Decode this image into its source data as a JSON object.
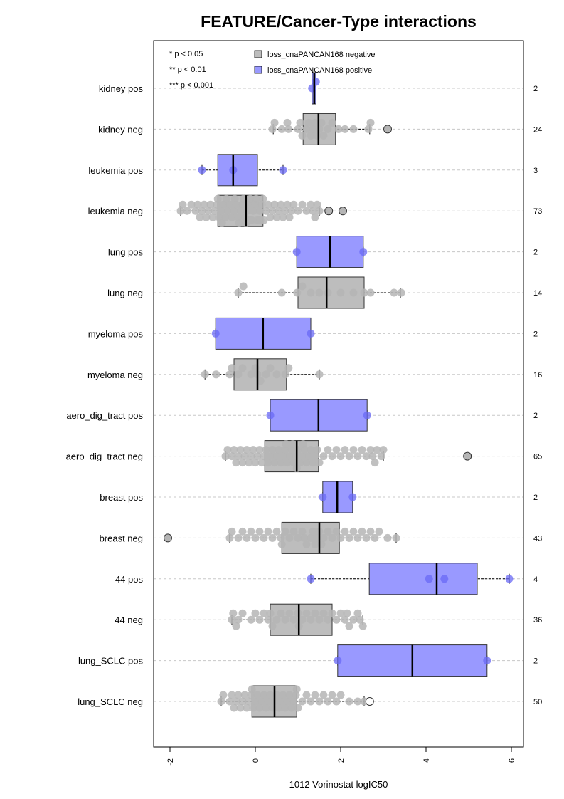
{
  "chart_data": {
    "type": "boxplot",
    "title": "FEATURE/Cancer-Type interactions",
    "xlabel": "1012 Vorinostat logIC50",
    "xlim": [
      -2.3,
      6.3
    ],
    "xticks": [
      "-2",
      "0",
      "2",
      "4",
      "6"
    ],
    "grid": "horizontal dashed",
    "significance_legend": [
      "* p < 0.05",
      "** p < 0.01",
      "*** p < 0.001"
    ],
    "legend": {
      "position": "top",
      "entries": [
        {
          "label": "loss_cnaPANCAN168 negative",
          "color": "#bdbdbd"
        },
        {
          "label": "loss_cnaPANCAN168 positive",
          "color": "#9999ff"
        }
      ]
    },
    "colors": {
      "negative_box": "#bdbdbd",
      "positive_box": "#9999ff",
      "negative_point": "#b5b5b5",
      "positive_point": "#6a6af5"
    },
    "groups": [
      {
        "label": "kidney pos",
        "n": "2",
        "status": "positive",
        "box": {
          "q1": 1.33,
          "median": 1.38,
          "q3": 1.42,
          "whisker_low": 1.33,
          "whisker_high": 1.42
        },
        "points": [
          1.33,
          1.42
        ]
      },
      {
        "label": "kidney neg",
        "n": "24",
        "status": "negative",
        "box": {
          "q1": 1.12,
          "median": 1.48,
          "q3": 1.88,
          "whisker_low": 0.42,
          "whisker_high": 2.68
        },
        "points": [
          0.4,
          0.45,
          0.62,
          0.75,
          0.78,
          1.0,
          1.05,
          1.1,
          1.2,
          1.25,
          1.3,
          1.35,
          1.4,
          1.45,
          1.5,
          1.55,
          1.6,
          1.7,
          1.8,
          1.95,
          2.1,
          2.3,
          2.65,
          2.7
        ],
        "outliers": [
          3.1
        ]
      },
      {
        "label": "leukemia pos",
        "n": "3",
        "status": "positive",
        "box": {
          "q1": -0.88,
          "median": -0.52,
          "q3": 0.05,
          "whisker_low": -1.25,
          "whisker_high": 0.65
        },
        "points": [
          -1.25,
          -0.52,
          0.65
        ]
      },
      {
        "label": "leukemia neg",
        "n": "73",
        "status": "negative",
        "box": {
          "q1": -0.88,
          "median": -0.22,
          "q3": 0.18,
          "whisker_low": -1.75,
          "whisker_high": 1.5
        },
        "points": [
          -1.75,
          -1.7,
          -1.6,
          -1.5,
          -1.4,
          -1.35,
          -1.3,
          -1.25,
          -1.2,
          -1.15,
          -1.1,
          -1.05,
          -1.0,
          -0.95,
          -0.9,
          -0.88,
          -0.85,
          -0.8,
          -0.78,
          -0.75,
          -0.7,
          -0.68,
          -0.65,
          -0.6,
          -0.55,
          -0.5,
          -0.48,
          -0.45,
          -0.4,
          -0.38,
          -0.35,
          -0.3,
          -0.28,
          -0.25,
          -0.22,
          -0.2,
          -0.18,
          -0.15,
          -0.12,
          -0.1,
          -0.08,
          -0.05,
          0.0,
          0.02,
          0.05,
          0.08,
          0.1,
          0.12,
          0.15,
          0.18,
          0.2,
          0.25,
          0.3,
          0.35,
          0.4,
          0.45,
          0.5,
          0.55,
          0.6,
          0.65,
          0.7,
          0.75,
          0.8,
          0.85,
          0.9,
          1.0,
          1.1,
          1.2,
          1.3,
          1.35,
          1.4,
          1.45,
          1.5
        ],
        "outliers": [
          1.72,
          2.05
        ]
      },
      {
        "label": "lung pos",
        "n": "2",
        "status": "positive",
        "box": {
          "q1": 0.97,
          "median": 1.75,
          "q3": 2.53,
          "whisker_low": 0.97,
          "whisker_high": 2.53
        },
        "points": [
          0.97,
          2.53
        ]
      },
      {
        "label": "lung neg",
        "n": "14",
        "status": "negative",
        "box": {
          "q1": 1.0,
          "median": 1.67,
          "q3": 2.55,
          "whisker_low": -0.4,
          "whisker_high": 3.4
        },
        "points": [
          -0.4,
          -0.28,
          0.62,
          0.98,
          1.1,
          1.3,
          1.5,
          1.7,
          2.0,
          2.3,
          2.55,
          2.7,
          3.25,
          3.42
        ]
      },
      {
        "label": "myeloma pos",
        "n": "2",
        "status": "positive",
        "box": {
          "q1": -0.93,
          "median": 0.18,
          "q3": 1.3,
          "whisker_low": -0.93,
          "whisker_high": 1.3
        },
        "points": [
          -0.93,
          1.3
        ]
      },
      {
        "label": "myeloma neg",
        "n": "16",
        "status": "negative",
        "box": {
          "q1": -0.5,
          "median": 0.05,
          "q3": 0.73,
          "whisker_low": -1.18,
          "whisker_high": 1.5
        },
        "points": [
          -1.18,
          -0.92,
          -0.6,
          -0.55,
          -0.4,
          -0.3,
          -0.1,
          0.0,
          0.05,
          0.12,
          0.25,
          0.35,
          0.5,
          0.7,
          0.78,
          1.5
        ]
      },
      {
        "label": "aero_dig_tract pos",
        "n": "2",
        "status": "positive",
        "box": {
          "q1": 0.35,
          "median": 1.48,
          "q3": 2.62,
          "whisker_low": 0.35,
          "whisker_high": 2.62
        },
        "points": [
          0.35,
          2.62
        ]
      },
      {
        "label": "aero_dig_tract neg",
        "n": "65",
        "status": "negative",
        "box": {
          "q1": 0.22,
          "median": 0.97,
          "q3": 1.48,
          "whisker_low": -0.7,
          "whisker_high": 3.0
        },
        "points": [
          -0.7,
          -0.65,
          -0.55,
          -0.5,
          -0.45,
          -0.4,
          -0.35,
          -0.3,
          -0.25,
          -0.2,
          -0.15,
          -0.1,
          -0.05,
          0.0,
          0.05,
          0.1,
          0.15,
          0.2,
          0.25,
          0.3,
          0.35,
          0.4,
          0.45,
          0.5,
          0.55,
          0.6,
          0.65,
          0.7,
          0.72,
          0.75,
          0.8,
          0.85,
          0.88,
          0.9,
          0.95,
          0.97,
          1.0,
          1.05,
          1.1,
          1.12,
          1.15,
          1.2,
          1.25,
          1.3,
          1.35,
          1.4,
          1.45,
          1.5,
          1.6,
          1.7,
          1.8,
          1.9,
          2.0,
          2.1,
          2.2,
          2.3,
          2.4,
          2.5,
          2.6,
          2.7,
          2.75,
          2.8,
          2.85,
          2.95,
          3.0
        ],
        "outliers": [
          4.97
        ]
      },
      {
        "label": "breast pos",
        "n": "2",
        "status": "positive",
        "box": {
          "q1": 1.58,
          "median": 1.92,
          "q3": 2.28,
          "whisker_low": 1.58,
          "whisker_high": 2.28
        },
        "points": [
          1.58,
          2.28
        ]
      },
      {
        "label": "breast neg",
        "n": "43",
        "status": "negative",
        "box": {
          "q1": 0.62,
          "median": 1.5,
          "q3": 1.97,
          "whisker_low": -0.6,
          "whisker_high": 3.3
        },
        "points": [
          -0.6,
          -0.55,
          -0.4,
          -0.3,
          -0.2,
          -0.1,
          0.0,
          0.1,
          0.2,
          0.3,
          0.4,
          0.5,
          0.6,
          0.62,
          0.7,
          0.8,
          0.9,
          1.0,
          1.1,
          1.15,
          1.2,
          1.3,
          1.35,
          1.4,
          1.45,
          1.5,
          1.55,
          1.6,
          1.7,
          1.8,
          1.9,
          2.0,
          2.1,
          2.2,
          2.3,
          2.4,
          2.5,
          2.6,
          2.7,
          2.8,
          2.9,
          3.1,
          3.3
        ],
        "outliers": [
          -2.05
        ]
      },
      {
        "label": "44 pos",
        "n": "4",
        "status": "positive",
        "box": {
          "q1": 2.67,
          "median": 4.25,
          "q3": 5.2,
          "whisker_low": 1.3,
          "whisker_high": 5.95
        },
        "points": [
          1.3,
          4.07,
          4.43,
          5.95
        ]
      },
      {
        "label": "44 neg",
        "n": "36",
        "status": "negative",
        "box": {
          "q1": 0.35,
          "median": 1.02,
          "q3": 1.8,
          "whisker_low": -0.55,
          "whisker_high": 2.52
        },
        "points": [
          -0.55,
          -0.52,
          -0.45,
          -0.4,
          -0.3,
          -0.1,
          0.0,
          0.1,
          0.2,
          0.3,
          0.35,
          0.4,
          0.5,
          0.6,
          0.7,
          0.8,
          0.9,
          1.0,
          1.02,
          1.1,
          1.2,
          1.3,
          1.4,
          1.5,
          1.6,
          1.7,
          1.8,
          1.9,
          2.0,
          2.1,
          2.15,
          2.2,
          2.3,
          2.4,
          2.45,
          2.52
        ]
      },
      {
        "label": "lung_SCLC pos",
        "n": "2",
        "status": "positive",
        "box": {
          "q1": 1.93,
          "median": 3.68,
          "q3": 5.43,
          "whisker_low": 1.93,
          "whisker_high": 5.43
        },
        "points": [
          1.93,
          5.43
        ]
      },
      {
        "label": "lung_SCLC neg",
        "n": "50",
        "status": "negative",
        "box": {
          "q1": -0.08,
          "median": 0.45,
          "q3": 0.97,
          "whisker_low": -0.8,
          "whisker_high": 2.55
        },
        "points": [
          -0.8,
          -0.75,
          -0.6,
          -0.55,
          -0.5,
          -0.45,
          -0.4,
          -0.35,
          -0.3,
          -0.25,
          -0.2,
          -0.15,
          -0.1,
          -0.08,
          -0.05,
          0.0,
          0.05,
          0.1,
          0.15,
          0.2,
          0.25,
          0.3,
          0.35,
          0.4,
          0.45,
          0.5,
          0.55,
          0.6,
          0.65,
          0.7,
          0.75,
          0.8,
          0.85,
          0.9,
          0.95,
          0.97,
          1.0,
          1.1,
          1.2,
          1.3,
          1.4,
          1.5,
          1.6,
          1.7,
          1.8,
          1.9,
          2.0,
          2.2,
          2.4,
          2.55
        ],
        "outliers": [
          2.68
        ]
      }
    ]
  }
}
